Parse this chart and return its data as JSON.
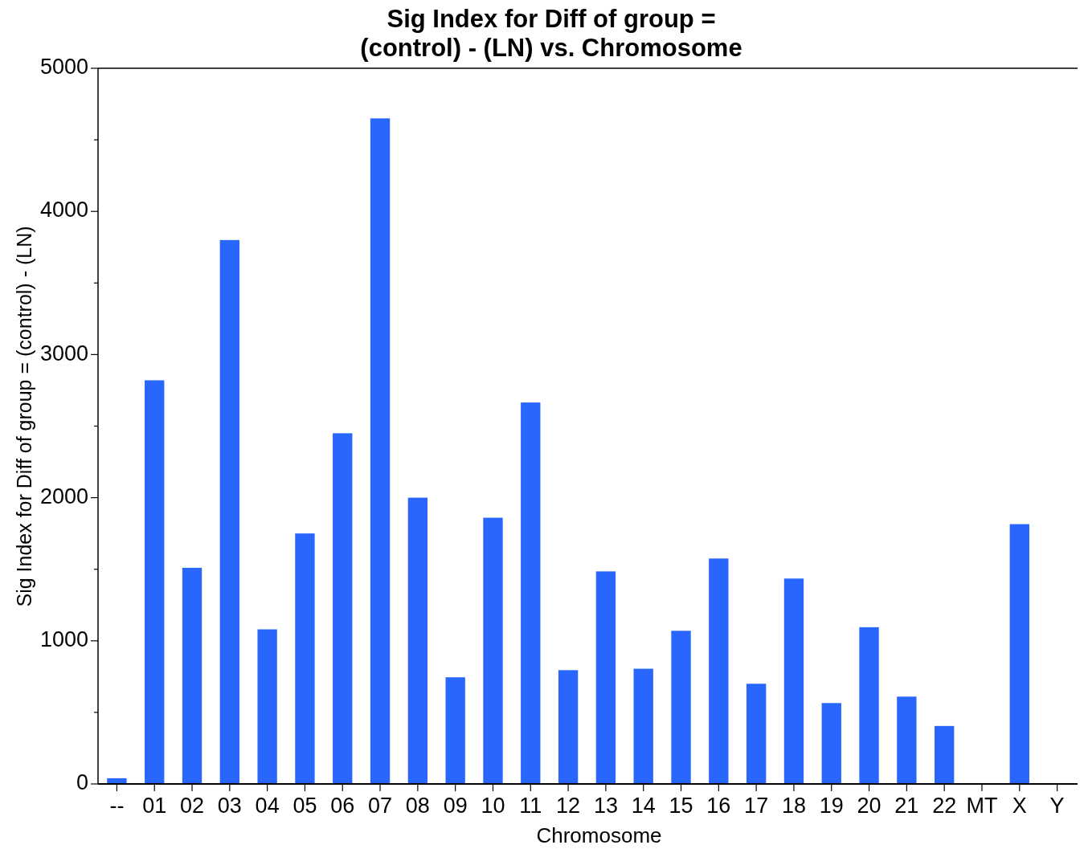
{
  "chart_data": {
    "type": "bar",
    "title": "Sig Index for Diff of group =\n(control) - (LN) vs. Chromosome",
    "xlabel": "Chromosome",
    "ylabel": "Sig Index for Diff of group = (control) - (LN)",
    "categories": [
      "--",
      "01",
      "02",
      "03",
      "04",
      "05",
      "06",
      "07",
      "08",
      "09",
      "10",
      "11",
      "12",
      "13",
      "14",
      "15",
      "16",
      "17",
      "18",
      "19",
      "20",
      "21",
      "22",
      "MT",
      "X",
      "Y"
    ],
    "values": [
      40,
      2820,
      1510,
      3800,
      1080,
      1750,
      2450,
      4650,
      2000,
      745,
      1860,
      2665,
      795,
      1485,
      805,
      1070,
      1575,
      700,
      1435,
      565,
      1095,
      610,
      405,
      null,
      1815,
      null
    ],
    "color": "#2966fd",
    "ylim": [
      0,
      5000
    ],
    "yticks": [
      0,
      {
        "value": 500,
        "label": null
      },
      1000,
      {
        "value": 1500,
        "label": null
      },
      2000,
      {
        "value": 2500,
        "label": null
      },
      3000,
      {
        "value": 3500,
        "label": null
      },
      4000,
      {
        "value": 4500,
        "label": null
      },
      5000
    ]
  }
}
